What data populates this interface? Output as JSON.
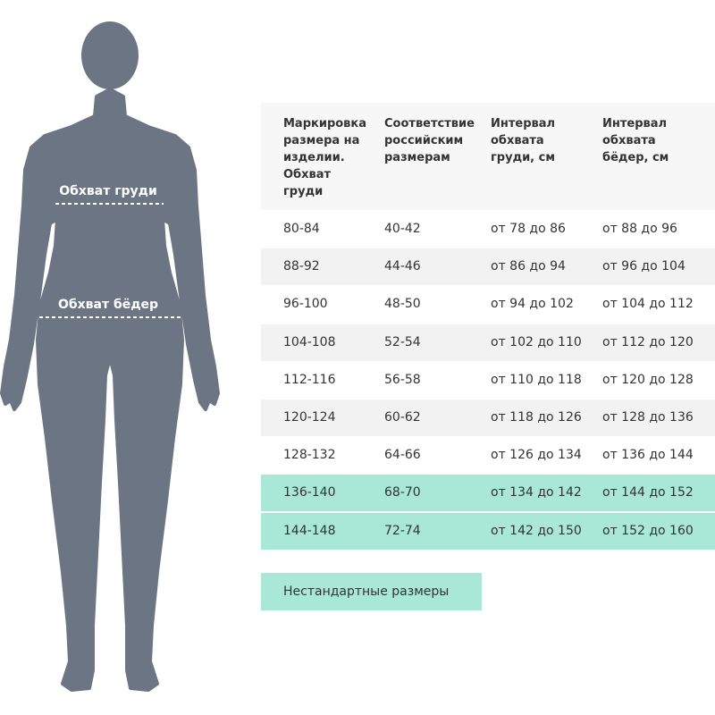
{
  "figure": {
    "labels": [
      "Обхват груди",
      "Обхват бёдер"
    ]
  },
  "table": {
    "headers": [
      "Маркировка размера на изделии. Обхват груди",
      "Соответствие российским размерам",
      "Интервал обхвата груди, см",
      "Интервал обхвата бёдер, см"
    ],
    "rows": [
      [
        "80-84",
        "40-42",
        "от 78 до 86",
        "от 88 до 96"
      ],
      [
        "88-92",
        "44-46",
        "от 86 до 94",
        "от 96 до 104"
      ],
      [
        "96-100",
        "48-50",
        "от 94 до 102",
        "от 104 до 112"
      ],
      [
        "104-108",
        "52-54",
        "от 102 до 110",
        "от 112 до 120"
      ],
      [
        "112-116",
        "56-58",
        "от 110 до 118",
        "от 120 до 128"
      ],
      [
        "120-124",
        "60-62",
        "от 118 до 126",
        "от 128 до 136"
      ],
      [
        "128-132",
        "64-66",
        "от 126 до 134",
        "от 136 до 144"
      ]
    ],
    "nonstandard_rows": [
      [
        "136-140",
        "68-70",
        "от 134 до 142",
        "от 144 до 152"
      ],
      [
        "144-148",
        "72-74",
        "от 142 до 150",
        "от 152 до 160"
      ]
    ],
    "nonstandard_color": "#a9e7d6"
  },
  "legend": {
    "label": "Нестандартные размеры"
  }
}
